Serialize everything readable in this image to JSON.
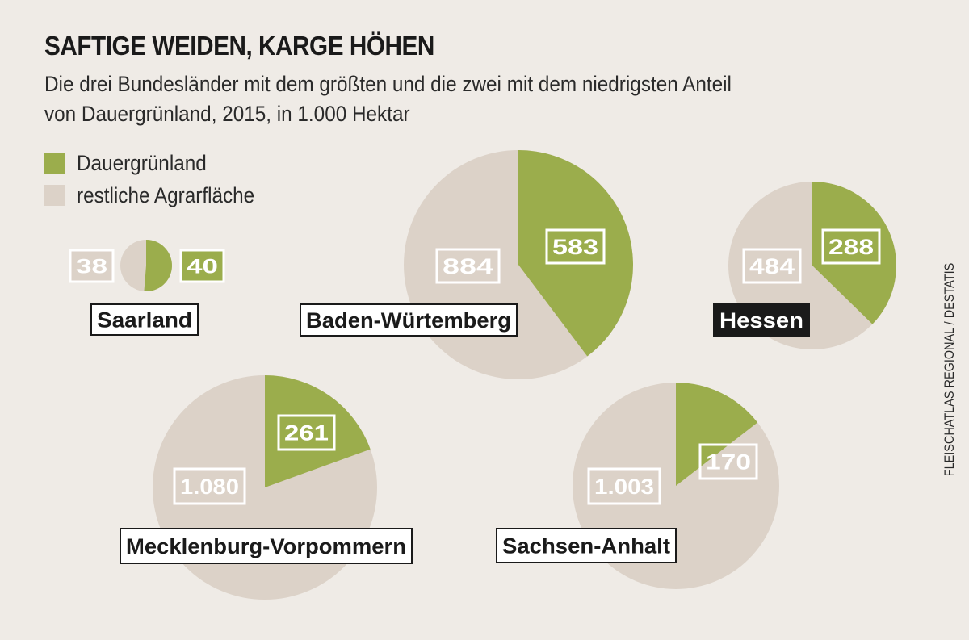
{
  "header": {
    "title": "SAFTIGE WEIDEN, KARGE HÖHEN",
    "subtitle_line1": "Die drei Bundesländer mit dem größten und die zwei mit dem niedrigsten Anteil",
    "subtitle_line2": "von Dauergrünland, 2015, in 1.000 Hektar"
  },
  "legend": [
    {
      "label": "Dauergrünland",
      "color": "#9bad4c"
    },
    {
      "label": "restliche Agrarfläche",
      "color": "#dcd2c8"
    }
  ],
  "source": "FLEISCHATLAS REGIONAL / DESTATIS",
  "colors": {
    "green": "#9bad4c",
    "beige": "#dcd2c8",
    "dark": "#1a1a1a",
    "white": "#ffffff"
  },
  "chart_data": {
    "type": "pie",
    "unit": "1.000 Hektar",
    "series_names": [
      "Dauergrünland",
      "restliche Agrarfläche"
    ],
    "pies": [
      {
        "name": "Saarland",
        "dauergruenland": 40,
        "restliche": 38,
        "dauergruenland_label": "40",
        "restliche_label": "38",
        "highlighted": false
      },
      {
        "name": "Baden-Würtemberg",
        "dauergruenland": 583,
        "restliche": 884,
        "dauergruenland_label": "583",
        "restliche_label": "884",
        "highlighted": false
      },
      {
        "name": "Hessen",
        "dauergruenland": 288,
        "restliche": 484,
        "dauergruenland_label": "288",
        "restliche_label": "484",
        "highlighted": true
      },
      {
        "name": "Mecklenburg-Vorpommern",
        "dauergruenland": 261,
        "restliche": 1080,
        "dauergruenland_label": "261",
        "restliche_label": "1.080",
        "highlighted": false
      },
      {
        "name": "Sachsen-Anhalt",
        "dauergruenland": 170,
        "restliche": 1003,
        "dauergruenland_label": "170",
        "restliche_label": "1.003",
        "highlighted": false
      }
    ]
  }
}
